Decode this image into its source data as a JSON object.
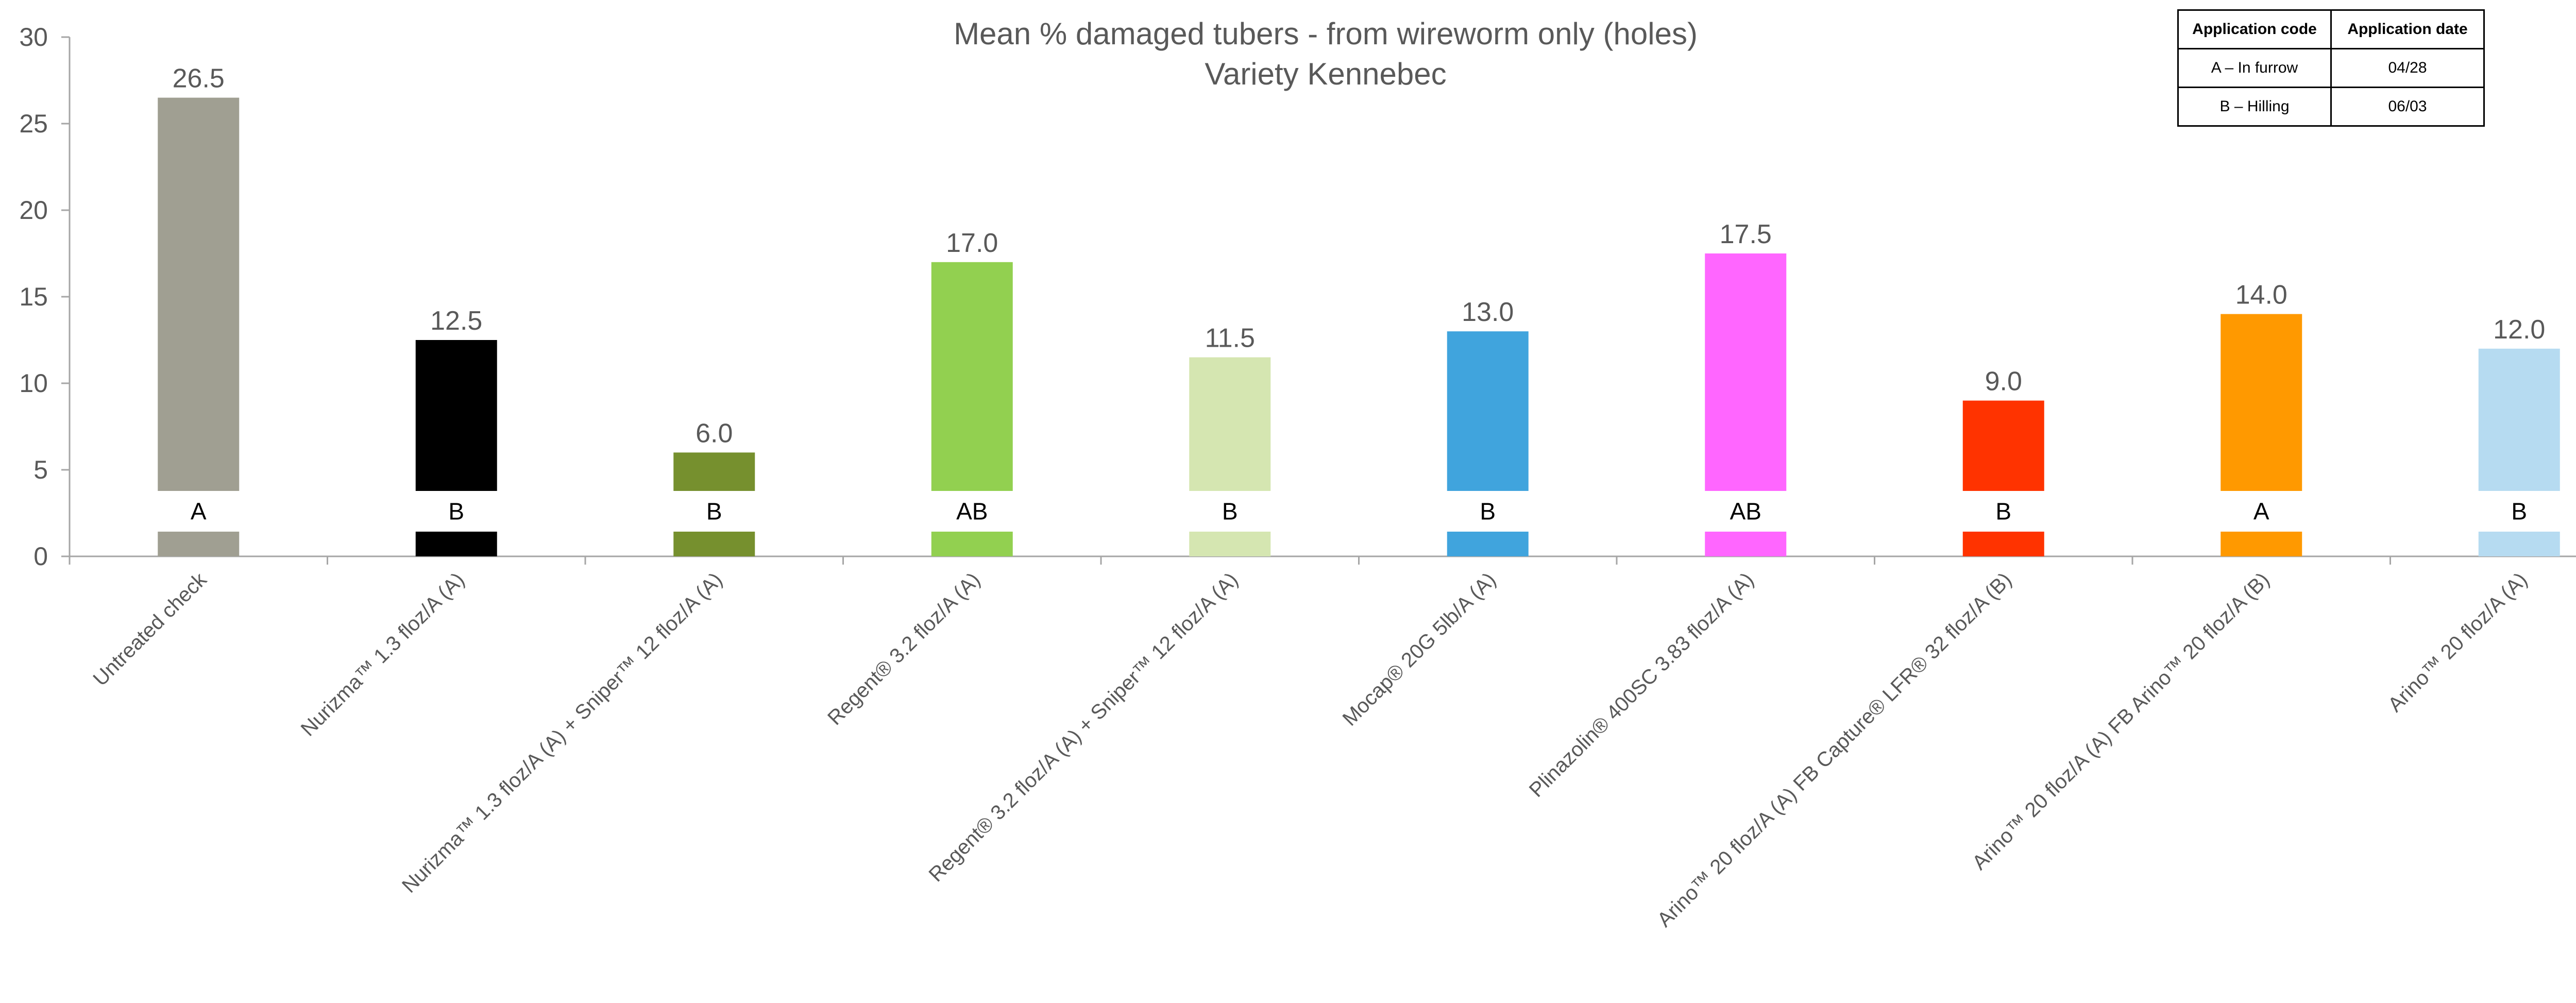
{
  "chart_data": {
    "type": "bar",
    "title": "Mean % damaged tubers  - from wireworm only (holes)",
    "subtitle": "Variety Kennebec",
    "xlabel": "",
    "ylabel": "",
    "ylim": [
      0,
      30
    ],
    "yticks": [
      0,
      5,
      10,
      15,
      20,
      25,
      30
    ],
    "grid": false,
    "categories": [
      "Untreated check",
      "Nurizma™ 1.3 floz/A (A)",
      "Nurizma™ 1.3 floz/A (A) + Sniper™ 12 floz/A (A)",
      "Regent® 3.2 floz/A (A)",
      "Regent® 3.2 floz/A (A) + Sniper™ 12 floz/A (A)",
      "Mocap® 20G 5lb/A (A)",
      "Plinazolin® 400SC 3.83 floz/A (A)",
      "Arino™ 20 floz/A (A) FB  Capture® LFR® 32 floz/A (B)",
      "Arino™ 20 floz/A (A) FB Arino™ 20 floz/A (B)",
      "Arino™ 20 floz/A (A)"
    ],
    "values": [
      26.5,
      12.5,
      6.0,
      17.0,
      11.5,
      13.0,
      17.5,
      9.0,
      14.0,
      12.0
    ],
    "value_labels": [
      "26.5",
      "12.5",
      "6.0",
      "17.0",
      "11.5",
      "13.0",
      "17.5",
      "9.0",
      "14.0",
      "12.0"
    ],
    "significance_letters": [
      "A",
      "B",
      "B",
      "AB",
      "B",
      "B",
      "AB",
      "B",
      "A",
      "B"
    ],
    "colors": [
      "#a09f92",
      "#000000",
      "#76902e",
      "#92d050",
      "#d5e6b1",
      "#40a4dd",
      "#ff66ff",
      "#ff3300",
      "#ff9900",
      "#b6dbf1"
    ]
  },
  "application_table": {
    "headers": [
      "Application code",
      "Application date"
    ],
    "rows": [
      [
        "A – In furrow",
        "04/28"
      ],
      [
        "B –  Hilling",
        "06/03"
      ]
    ]
  }
}
